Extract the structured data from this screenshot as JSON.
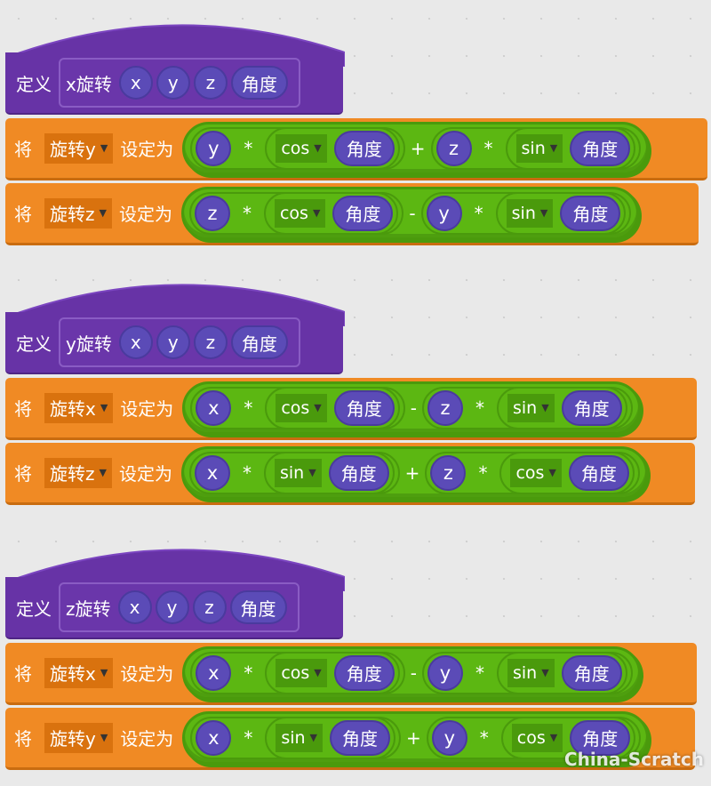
{
  "colors": {
    "define": "#6733a6",
    "set": "#f08a24",
    "operator": "#5cb712",
    "variable": "#5b4bb7"
  },
  "groups": [
    {
      "define": "定义",
      "name": "x旋转",
      "params": [
        "x",
        "y",
        "z",
        "角度"
      ],
      "sets": [
        {
          "label": "将",
          "var": "旋转y",
          "to": "设定为",
          "a": "y",
          "op1": "*",
          "f1": "cos",
          "arg1": "角度",
          "op": "+",
          "b": "z",
          "op2": "*",
          "f2": "sin",
          "arg2": "角度"
        },
        {
          "label": "将",
          "var": "旋转z",
          "to": "设定为",
          "a": "z",
          "op1": "*",
          "f1": "cos",
          "arg1": "角度",
          "op": "-",
          "b": "y",
          "op2": "*",
          "f2": "sin",
          "arg2": "角度"
        }
      ]
    },
    {
      "define": "定义",
      "name": "y旋转",
      "params": [
        "x",
        "y",
        "z",
        "角度"
      ],
      "sets": [
        {
          "label": "将",
          "var": "旋转x",
          "to": "设定为",
          "a": "x",
          "op1": "*",
          "f1": "cos",
          "arg1": "角度",
          "op": "-",
          "b": "z",
          "op2": "*",
          "f2": "sin",
          "arg2": "角度"
        },
        {
          "label": "将",
          "var": "旋转z",
          "to": "设定为",
          "a": "x",
          "op1": "*",
          "f1": "sin",
          "arg1": "角度",
          "op": "+",
          "b": "z",
          "op2": "*",
          "f2": "cos",
          "arg2": "角度"
        }
      ]
    },
    {
      "define": "定义",
      "name": "z旋转",
      "params": [
        "x",
        "y",
        "z",
        "角度"
      ],
      "sets": [
        {
          "label": "将",
          "var": "旋转x",
          "to": "设定为",
          "a": "x",
          "op1": "*",
          "f1": "cos",
          "arg1": "角度",
          "op": "-",
          "b": "y",
          "op2": "*",
          "f2": "sin",
          "arg2": "角度"
        },
        {
          "label": "将",
          "var": "旋转y",
          "to": "设定为",
          "a": "x",
          "op1": "*",
          "f1": "sin",
          "arg1": "角度",
          "op": "+",
          "b": "y",
          "op2": "*",
          "f2": "cos",
          "arg2": "角度"
        }
      ]
    }
  ],
  "watermark": "China-Scratch"
}
